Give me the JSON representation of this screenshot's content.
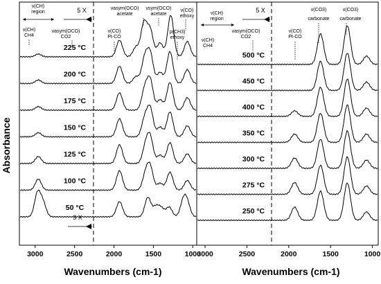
{
  "chart_data": {
    "type": "line",
    "ylabel": "Absorbance",
    "panels": [
      {
        "xlabel": "Wavenumbers (cm-1)",
        "xlim": [
          3200,
          950
        ],
        "x_ticks": [
          3000,
          2500,
          2000,
          1500,
          1000
        ],
        "region_divider": 2200,
        "magnification_top": "5 X",
        "magnification_bottom": "3 X",
        "annotations": [
          {
            "id": "ch-region",
            "lines": [
              "ν(CH)",
              "region"
            ]
          },
          {
            "id": "ch4",
            "lines": [
              "ν(CH)",
              "CH4"
            ]
          },
          {
            "id": "co2",
            "lines": [
              "νasym(OCO)",
              "CO2"
            ]
          },
          {
            "id": "pt-co",
            "lines": [
              "ν(CO)",
              "Pt-CO"
            ]
          },
          {
            "id": "acetate-asym",
            "lines": [
              "νasym(OCO)",
              "acetate"
            ]
          },
          {
            "id": "acetate-sym",
            "lines": [
              "νsym(OCO)",
              "acetate"
            ]
          },
          {
            "id": "ch3-ethoxy",
            "lines": [
              "ρ(CH3)",
              "ethoxy"
            ]
          },
          {
            "id": "co-ethoxy",
            "lines": [
              "ν(CO)",
              "ethoxy"
            ]
          }
        ],
        "series": [
          {
            "name": "225 °C",
            "peaks": [
              [
                2960,
                4
              ],
              [
                1930,
                24
              ],
              [
                1720,
                14
              ],
              [
                1620,
                48
              ],
              [
                1540,
                38
              ],
              [
                1415,
                20
              ],
              [
                1280,
                60
              ],
              [
                1070,
                22
              ]
            ]
          },
          {
            "name": "200 °C",
            "peaks": [
              [
                2960,
                5
              ],
              [
                1930,
                25
              ],
              [
                1720,
                10
              ],
              [
                1610,
                36
              ],
              [
                1540,
                42
              ],
              [
                1415,
                16
              ],
              [
                1290,
                46
              ],
              [
                1070,
                20
              ]
            ]
          },
          {
            "name": "175 °C",
            "peaks": [
              [
                2960,
                5
              ],
              [
                1930,
                25
              ],
              [
                1610,
                30
              ],
              [
                1540,
                42
              ],
              [
                1415,
                15
              ],
              [
                1290,
                40
              ],
              [
                1070,
                18
              ]
            ]
          },
          {
            "name": "150 °C",
            "peaks": [
              [
                2960,
                6
              ],
              [
                1930,
                26
              ],
              [
                1610,
                26
              ],
              [
                1540,
                40
              ],
              [
                1415,
                14
              ],
              [
                1290,
                36
              ],
              [
                1070,
                16
              ]
            ]
          },
          {
            "name": "125 °C",
            "peaks": [
              [
                2960,
                10
              ],
              [
                1930,
                27
              ],
              [
                1600,
                24
              ],
              [
                1540,
                36
              ],
              [
                1415,
                12
              ],
              [
                1290,
                30
              ],
              [
                1070,
                14
              ]
            ]
          },
          {
            "name": "100 °C",
            "peaks": [
              [
                2960,
                16
              ],
              [
                1930,
                28
              ],
              [
                1600,
                22
              ],
              [
                1540,
                32
              ],
              [
                1415,
                10
              ],
              [
                1290,
                26
              ],
              [
                1070,
                14
              ]
            ]
          },
          {
            "name": "50 °C",
            "peaks": [
              [
                2970,
                34
              ],
              [
                2900,
                20
              ],
              [
                1930,
                22
              ],
              [
                1570,
                28
              ],
              [
                1470,
                14
              ],
              [
                1400,
                12
              ],
              [
                1300,
                14
              ],
              [
                1120,
                22
              ],
              [
                1070,
                18
              ]
            ]
          }
        ]
      },
      {
        "xlabel": "Wavenumbers (cm-1)",
        "xlim": [
          3100,
          930
        ],
        "x_ticks": [
          3000,
          2500,
          2000,
          1500,
          1000
        ],
        "region_divider": 2200,
        "magnification_top": "5 X",
        "annotations": [
          {
            "id": "ch-region",
            "lines": [
              "ν(CH)",
              "region"
            ]
          },
          {
            "id": "ch4",
            "lines": [
              "ν(CH)",
              "CH4"
            ]
          },
          {
            "id": "co2",
            "lines": [
              "νasym(OCO)",
              "CO2"
            ]
          },
          {
            "id": "pt-co",
            "lines": [
              "ν(CO)",
              "Pt-CO"
            ]
          },
          {
            "id": "carbonate-1",
            "lines": [
              "ν(CO3)",
              "carbonate"
            ]
          },
          {
            "id": "carbonate-2",
            "lines": [
              "ν(CO3)",
              "carbonate"
            ]
          }
        ],
        "series": [
          {
            "name": "500 °C",
            "peaks": [
              [
                1620,
                44
              ],
              [
                1300,
                56
              ],
              [
                1070,
                12
              ]
            ]
          },
          {
            "name": "450 °C",
            "peaks": [
              [
                1620,
                42
              ],
              [
                1300,
                54
              ],
              [
                1070,
                12
              ]
            ]
          },
          {
            "name": "400 °C",
            "peaks": [
              [
                1930,
                8
              ],
              [
                1620,
                42
              ],
              [
                1300,
                54
              ],
              [
                1070,
                12
              ]
            ]
          },
          {
            "name": "350 °C",
            "peaks": [
              [
                1930,
                12
              ],
              [
                1620,
                42
              ],
              [
                1300,
                54
              ],
              [
                1070,
                12
              ]
            ]
          },
          {
            "name": "300 °C",
            "peaks": [
              [
                1930,
                15
              ],
              [
                1620,
                42
              ],
              [
                1300,
                54
              ],
              [
                1070,
                12
              ]
            ]
          },
          {
            "name": "275 °C",
            "peaks": [
              [
                1930,
                17
              ],
              [
                1620,
                42
              ],
              [
                1300,
                54
              ],
              [
                1070,
                12
              ]
            ]
          },
          {
            "name": "250 °C",
            "peaks": [
              [
                1930,
                19
              ],
              [
                1620,
                42
              ],
              [
                1300,
                54
              ],
              [
                1070,
                12
              ]
            ]
          }
        ]
      }
    ]
  }
}
